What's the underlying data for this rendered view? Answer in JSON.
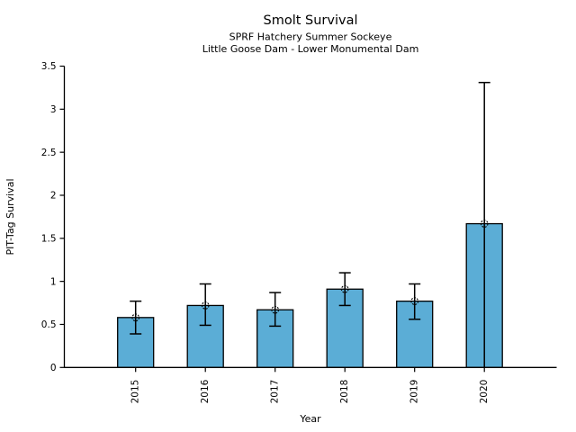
{
  "figure": {
    "title": "Smolt Survival",
    "subtitle1": "SPRF Hatchery Summer Sockeye",
    "subtitle2": "Little Goose Dam - Lower Monumental Dam"
  },
  "chart_data": {
    "type": "bar",
    "title": "Smolt Survival",
    "subtitle1": "SPRF Hatchery Summer Sockeye",
    "subtitle2": "Little Goose Dam - Lower Monumental Dam",
    "xlabel": "Year",
    "ylabel": "PIT-Tag Survival",
    "categories": [
      "2015",
      "2016",
      "2017",
      "2018",
      "2019",
      "2020"
    ],
    "values": [
      0.58,
      0.72,
      0.67,
      0.91,
      0.77,
      1.67
    ],
    "error_low": [
      0.39,
      0.49,
      0.48,
      0.72,
      0.56,
      0.0
    ],
    "error_high": [
      0.77,
      0.97,
      0.87,
      1.1,
      0.97,
      3.31
    ],
    "ylim": [
      0,
      3.5
    ],
    "ytick_labels": [
      "0",
      "0.5",
      "1",
      "1.5",
      "2",
      "2.5",
      "3",
      "3.5"
    ],
    "grid": false,
    "legend": "none",
    "bar_color": "#5BADD6",
    "bar_edge_color": "#000000",
    "error_color": "#000000",
    "marker": "open-circle-dashed",
    "xtick_rotation_deg": 90
  }
}
